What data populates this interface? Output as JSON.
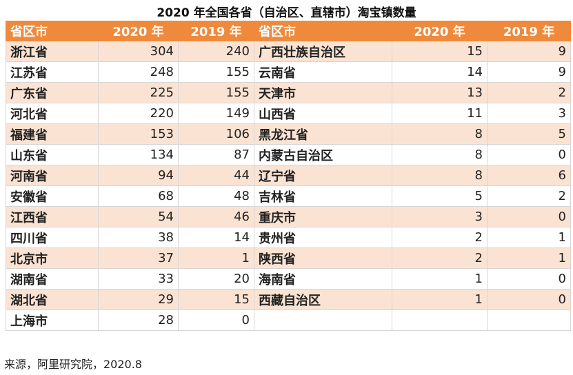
{
  "title": "2020 年全国各省（自治区、直辖市）淘宝镇数量",
  "table": {
    "header": [
      "省区市",
      "2020 年",
      "2019 年",
      "省区市",
      "2020 年",
      "2019 年"
    ],
    "rows": [
      {
        "left": [
          "浙江省",
          304,
          240
        ],
        "right": [
          "广西壮族自治区",
          15,
          9
        ]
      },
      {
        "left": [
          "江苏省",
          248,
          155
        ],
        "right": [
          "云南省",
          14,
          9
        ]
      },
      {
        "left": [
          "广东省",
          225,
          155
        ],
        "right": [
          "天津市",
          13,
          2
        ]
      },
      {
        "left": [
          "河北省",
          220,
          149
        ],
        "right": [
          "山西省",
          11,
          3
        ]
      },
      {
        "left": [
          "福建省",
          153,
          106
        ],
        "right": [
          "黑龙江省",
          8,
          5
        ]
      },
      {
        "left": [
          "山东省",
          134,
          87
        ],
        "right": [
          "内蒙古自治区",
          8,
          0
        ]
      },
      {
        "left": [
          "河南省",
          94,
          44
        ],
        "right": [
          "辽宁省",
          8,
          6
        ]
      },
      {
        "left": [
          "安徽省",
          68,
          48
        ],
        "right": [
          "吉林省",
          5,
          2
        ]
      },
      {
        "left": [
          "江西省",
          54,
          46
        ],
        "right": [
          "重庆市",
          3,
          0
        ]
      },
      {
        "left": [
          "四川省",
          38,
          14
        ],
        "right": [
          "贵州省",
          2,
          1
        ]
      },
      {
        "left": [
          "北京市",
          37,
          1
        ],
        "right": [
          "陕西省",
          2,
          1
        ]
      },
      {
        "left": [
          "湖南省",
          33,
          20
        ],
        "right": [
          "海南省",
          1,
          0
        ]
      },
      {
        "left": [
          "湖北省",
          29,
          15
        ],
        "right": [
          "西藏自治区",
          1,
          0
        ]
      },
      {
        "left": [
          "上海市",
          28,
          0
        ]
      }
    ]
  },
  "source": "来源，阿里研究院，2020.8"
}
